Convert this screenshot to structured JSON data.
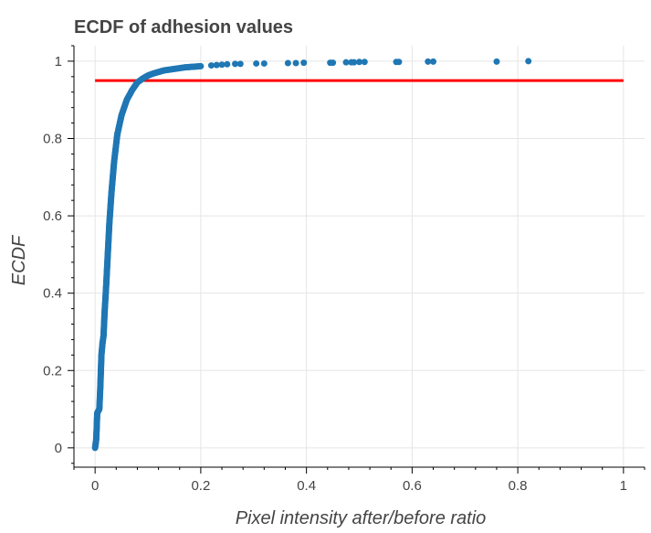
{
  "chart_data": {
    "type": "scatter",
    "title": "ECDF of adhesion values",
    "xlabel": "Pixel intensity after/before ratio",
    "ylabel": "ECDF",
    "xlim": [
      -0.04,
      1.04
    ],
    "ylim": [
      -0.05,
      1.04
    ],
    "x_ticks": [
      0,
      0.2,
      0.4,
      0.6,
      0.8,
      1
    ],
    "x_tick_labels": [
      "0",
      "0.2",
      "0.4",
      "0.6",
      "0.8",
      "1"
    ],
    "y_ticks": [
      0,
      0.2,
      0.4,
      0.6,
      0.8,
      1
    ],
    "y_tick_labels": [
      "0",
      "0.2",
      "0.4",
      "0.6",
      "0.8",
      "1"
    ],
    "grid": true,
    "point_color": "#1f77b4",
    "threshold_color": "#ff0000",
    "threshold_line": {
      "y": 0.95,
      "x_start": 0,
      "x_end": 1
    },
    "curve_points": [
      [
        0.0,
        0.0
      ],
      [
        0.002,
        0.02
      ],
      [
        0.003,
        0.05
      ],
      [
        0.004,
        0.09
      ],
      [
        0.006,
        0.095
      ],
      [
        0.008,
        0.1
      ],
      [
        0.009,
        0.13
      ],
      [
        0.01,
        0.16
      ],
      [
        0.011,
        0.2
      ],
      [
        0.012,
        0.24
      ],
      [
        0.014,
        0.27
      ],
      [
        0.016,
        0.29
      ],
      [
        0.018,
        0.35
      ],
      [
        0.021,
        0.42
      ],
      [
        0.024,
        0.5
      ],
      [
        0.027,
        0.58
      ],
      [
        0.031,
        0.66
      ],
      [
        0.036,
        0.74
      ],
      [
        0.042,
        0.81
      ],
      [
        0.05,
        0.86
      ],
      [
        0.06,
        0.9
      ],
      [
        0.07,
        0.925
      ],
      [
        0.08,
        0.945
      ],
      [
        0.09,
        0.955
      ],
      [
        0.1,
        0.963
      ],
      [
        0.11,
        0.968
      ],
      [
        0.12,
        0.972
      ],
      [
        0.13,
        0.976
      ],
      [
        0.15,
        0.98
      ],
      [
        0.17,
        0.984
      ],
      [
        0.2,
        0.987
      ]
    ],
    "tail_points": [
      [
        0.22,
        0.989
      ],
      [
        0.23,
        0.99
      ],
      [
        0.24,
        0.991
      ],
      [
        0.25,
        0.992
      ],
      [
        0.265,
        0.993
      ],
      [
        0.275,
        0.993
      ],
      [
        0.305,
        0.994
      ],
      [
        0.32,
        0.994
      ],
      [
        0.365,
        0.995
      ],
      [
        0.38,
        0.995
      ],
      [
        0.395,
        0.996
      ],
      [
        0.445,
        0.996
      ],
      [
        0.45,
        0.996
      ],
      [
        0.475,
        0.997
      ],
      [
        0.485,
        0.997
      ],
      [
        0.49,
        0.997
      ],
      [
        0.5,
        0.998
      ],
      [
        0.51,
        0.998
      ],
      [
        0.57,
        0.998
      ],
      [
        0.575,
        0.998
      ],
      [
        0.63,
        0.999
      ],
      [
        0.64,
        0.999
      ],
      [
        0.76,
        0.999
      ],
      [
        0.82,
        1.0
      ]
    ]
  }
}
